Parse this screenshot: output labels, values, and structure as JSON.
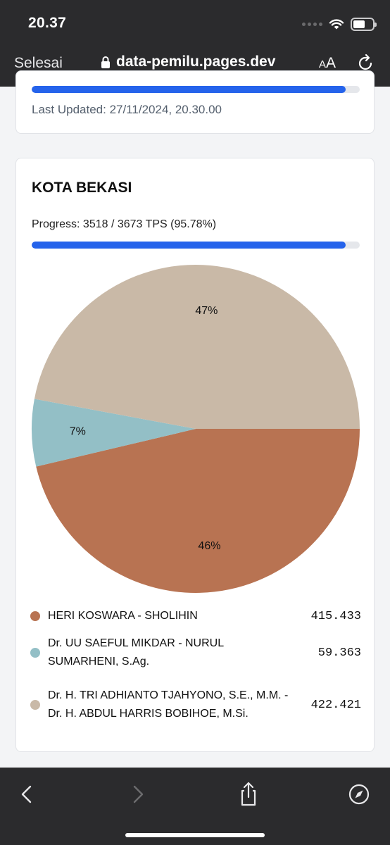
{
  "status_bar": {
    "time": "20.37"
  },
  "browser": {
    "done_label": "Selesai",
    "url": "data-pemilu.pages.dev",
    "aa_small": "A",
    "aa_large": "A"
  },
  "prev_card": {
    "progress_fraction": 0.9575,
    "last_updated": "Last Updated: 27/11/2024, 20.30.00"
  },
  "region": {
    "title": "KOTA BEKASI",
    "progress_text": "Progress: 3518 / 3673 TPS (95.78%)",
    "progress_fraction": 0.9578
  },
  "chart_data": {
    "type": "pie",
    "slices": [
      {
        "name": "HERI KOSWARA - SHOLIHIN",
        "value": 415433,
        "display_value": "415.433",
        "label": "46%",
        "color": "#b87352"
      },
      {
        "name": "Dr. UU SAEFUL MIKDAR - NURUL SUMARHENI, S.Ag.",
        "value": 59363,
        "display_value": "59.363",
        "label": "7%",
        "color": "#93bfc6"
      },
      {
        "name": "Dr. H. TRI ADHIANTO TJAHYONO, S.E., M.M. - Dr. H. ABDUL HARRIS BOBIHOE, M.Si.",
        "value": 422421,
        "display_value": "422.421",
        "label": "47%",
        "color": "#c9b9a7"
      }
    ]
  }
}
